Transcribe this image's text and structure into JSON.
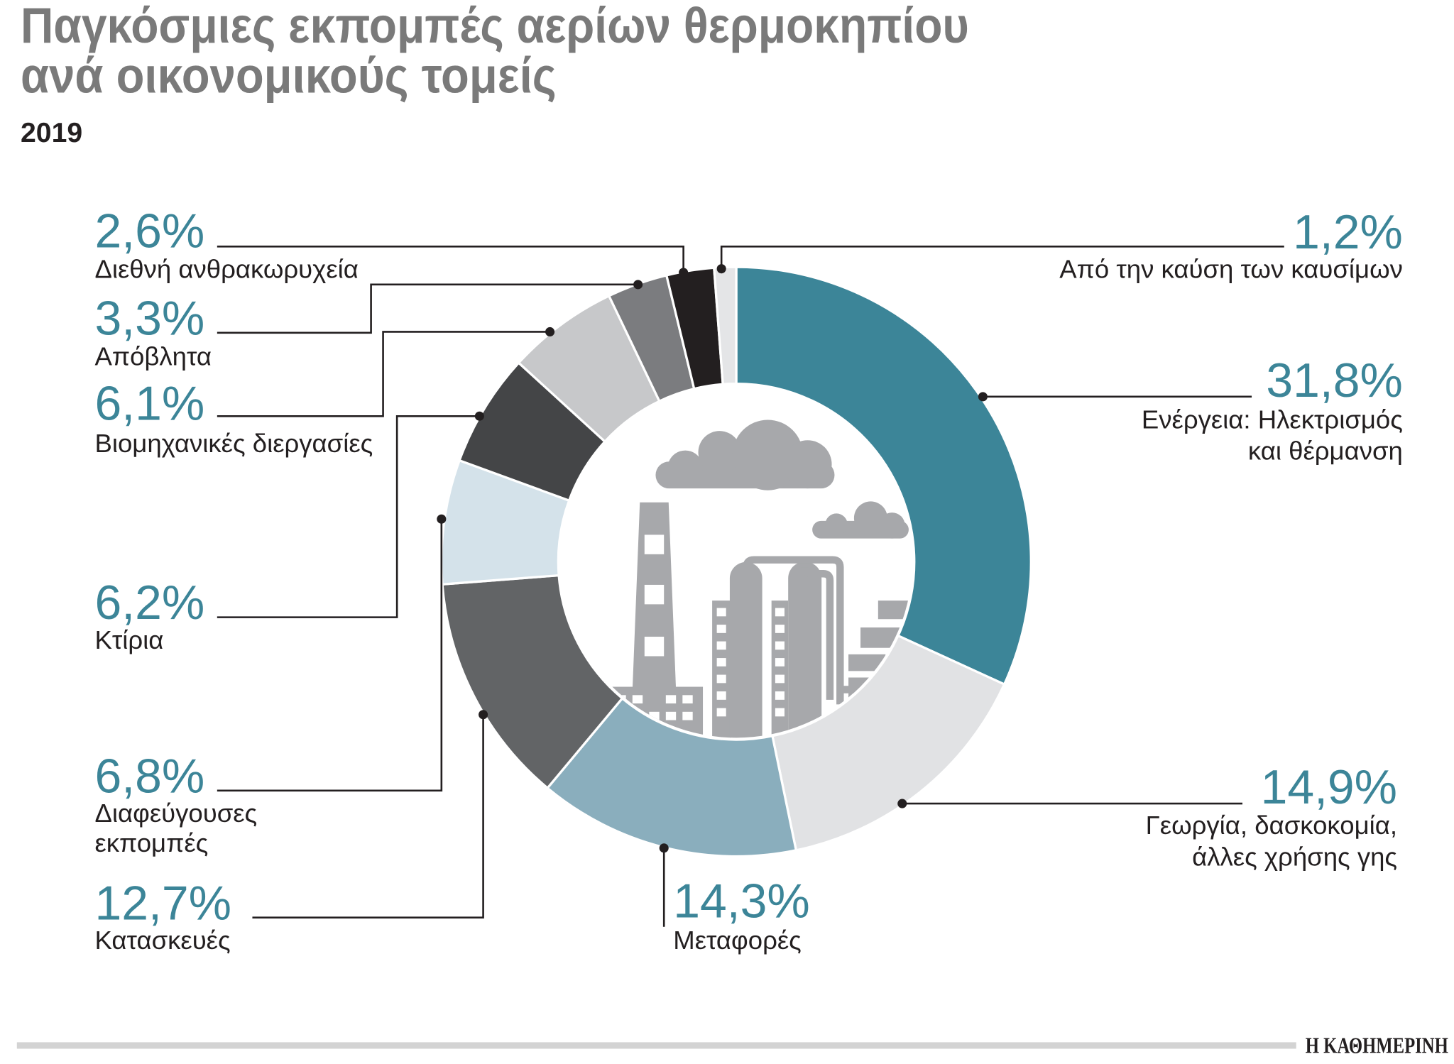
{
  "chart_data": {
    "type": "pie",
    "donut": true,
    "title_lines": [
      "Παγκόσμιες εκπομπές αερίων θερμοκηπίου",
      "ανά οικονομικούς τομείς"
    ],
    "subtitle": "2019",
    "slices": [
      {
        "label": [
          "Ενέργεια: Ηλεκτρισμός",
          "και θέρμανση"
        ],
        "value": 31.8,
        "value_label": "31,8%",
        "color": "#3c8598"
      },
      {
        "label": [
          "Γεωργία, δασκοκομία,",
          "άλλες χρήσης γης"
        ],
        "value": 14.9,
        "value_label": "14,9%",
        "color": "#e1e2e4"
      },
      {
        "label": [
          "Μεταφορές"
        ],
        "value": 14.3,
        "value_label": "14,3%",
        "color": "#8aaebd"
      },
      {
        "label": [
          "Κατασκευές"
        ],
        "value": 12.7,
        "value_label": "12,7%",
        "color": "#626466"
      },
      {
        "label": [
          "Διαφεύγουσες",
          "εκπομπές"
        ],
        "value": 6.8,
        "value_label": "6,8%",
        "color": "#d4e2ea"
      },
      {
        "label": [
          "Κτίρια"
        ],
        "value": 6.2,
        "value_label": "6,2%",
        "color": "#444547"
      },
      {
        "label": [
          "Βιομηχανικές διεργασίες"
        ],
        "value": 6.1,
        "value_label": "6,1%",
        "color": "#c7c8ca"
      },
      {
        "label": [
          "Απόβλητα"
        ],
        "value": 3.3,
        "value_label": "3,3%",
        "color": "#7b7c7f"
      },
      {
        "label": [
          "Διεθνή ανθρακωρυχεία"
        ],
        "value": 2.6,
        "value_label": "2,6%",
        "color": "#231f20"
      },
      {
        "label": [
          "Από την καύση των καυσίμων"
        ],
        "value": 1.2,
        "value_label": "1,2%",
        "color": "#e4e5e7"
      }
    ]
  },
  "illustration": {
    "icon": "factory-icon"
  },
  "footer": {
    "brand": "Η ΚΑΘΗΜΕΡΙΝΗ"
  },
  "colors": {
    "title": "#7a7a7a",
    "accent": "#3c8598",
    "text": "#231f20",
    "leader": "#231f20",
    "illustration": "#a7a8ab",
    "rule": "#d3d3d3"
  }
}
